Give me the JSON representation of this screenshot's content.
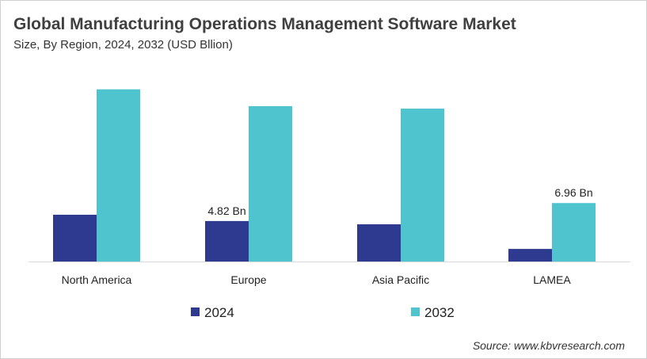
{
  "chart_data": {
    "type": "bar",
    "title": "Global Manufacturing  Operations Management Software Market",
    "subtitle": "Size, By Region, 2024, 2032 (USD Bllion)",
    "categories": [
      "North America",
      "Europe",
      "Asia Pacific",
      "LAMEA"
    ],
    "series": [
      {
        "name": "2024",
        "color": "#2e3a8f",
        "values": [
          5.57,
          4.82,
          4.43,
          1.5
        ]
      },
      {
        "name": "2032",
        "color": "#4fc4cf",
        "values": [
          20.5,
          18.5,
          18.2,
          6.96
        ]
      }
    ],
    "data_labels": [
      {
        "series": 0,
        "category": 1,
        "text": "4.82 Bn"
      },
      {
        "series": 1,
        "category": 3,
        "text": "6.96 Bn"
      }
    ],
    "ylim": [
      0,
      21
    ],
    "grid": false,
    "legend": "bottom",
    "source": "Source: www.kbvresearch.com"
  }
}
